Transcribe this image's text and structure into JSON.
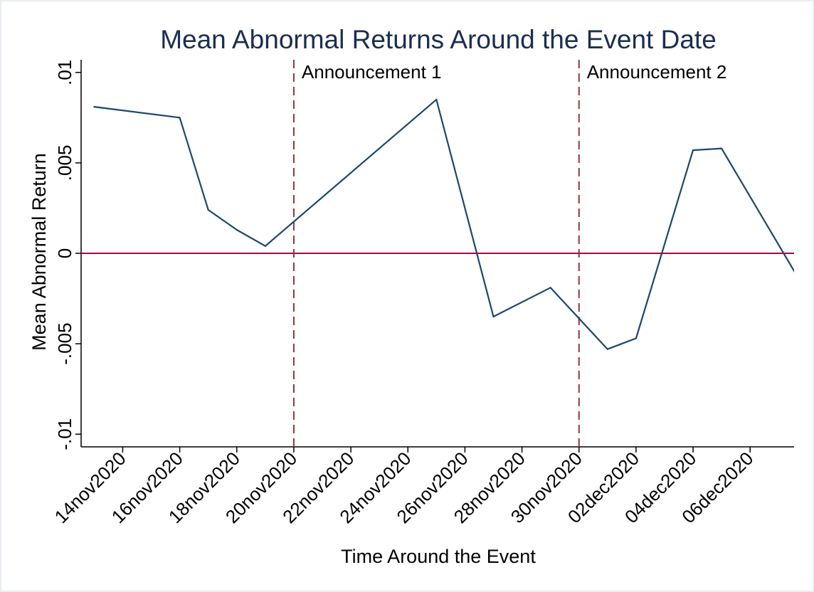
{
  "colors": {
    "title": "#1a2e4f",
    "series": "#1a476f",
    "zero_line": "#b0063f",
    "event_lines": "#90353b",
    "axis": "#000000",
    "background": "#ffffff"
  },
  "chart_data": {
    "type": "line",
    "title": "Mean Abnormal Returns Around the Event Date",
    "xlabel": "Time Around the Event",
    "ylabel": "Mean Abnormal Return",
    "grid": false,
    "legend": "none",
    "xlim": [
      "2020-11-12T13:00",
      "2020-12-07T13:00"
    ],
    "ylim": [
      -0.0107,
      0.0107
    ],
    "y_ticks": [
      {
        "value": -0.01,
        "label": "-.01"
      },
      {
        "value": -0.005,
        "label": "-.005"
      },
      {
        "value": 0,
        "label": "0"
      },
      {
        "value": 0.005,
        "label": ".005"
      },
      {
        "value": 0.01,
        "label": ".01"
      }
    ],
    "x_ticks": [
      {
        "value": "2020-11-14",
        "label": "14nov2020"
      },
      {
        "value": "2020-11-16",
        "label": "16nov2020"
      },
      {
        "value": "2020-11-18",
        "label": "18nov2020"
      },
      {
        "value": "2020-11-20",
        "label": "20nov2020"
      },
      {
        "value": "2020-11-22",
        "label": "22nov2020"
      },
      {
        "value": "2020-11-24",
        "label": "24nov2020"
      },
      {
        "value": "2020-11-26",
        "label": "26nov2020"
      },
      {
        "value": "2020-11-28",
        "label": "28nov2020"
      },
      {
        "value": "2020-11-30",
        "label": "30nov2020"
      },
      {
        "value": "2020-12-02",
        "label": "02dec2020"
      },
      {
        "value": "2020-12-04",
        "label": "04dec2020"
      },
      {
        "value": "2020-12-06",
        "label": "06dec2020"
      }
    ],
    "series": [
      {
        "points": [
          {
            "x": "2020-11-13",
            "y": 0.0081
          },
          {
            "x": "2020-11-16",
            "y": 0.0075
          },
          {
            "x": "2020-11-17",
            "y": 0.0024
          },
          {
            "x": "2020-11-18",
            "y": 0.0013
          },
          {
            "x": "2020-11-19",
            "y": 0.0004
          },
          {
            "x": "2020-11-25",
            "y": 0.0085
          },
          {
            "x": "2020-11-27",
            "y": -0.0035
          },
          {
            "x": "2020-11-29",
            "y": -0.0019
          },
          {
            "x": "2020-12-01",
            "y": -0.0053
          },
          {
            "x": "2020-12-02",
            "y": -0.0047
          },
          {
            "x": "2020-12-04",
            "y": 0.0057
          },
          {
            "x": "2020-12-05",
            "y": 0.0058
          },
          {
            "x": "2020-12-08",
            "y": -0.0022
          }
        ]
      }
    ],
    "reference_lines": [
      {
        "axis": "y",
        "value": 0
      },
      {
        "axis": "x",
        "value": "2020-11-20",
        "label": "Announcement 1"
      },
      {
        "axis": "x",
        "value": "2020-11-30",
        "label": "Announcement 2"
      }
    ]
  }
}
